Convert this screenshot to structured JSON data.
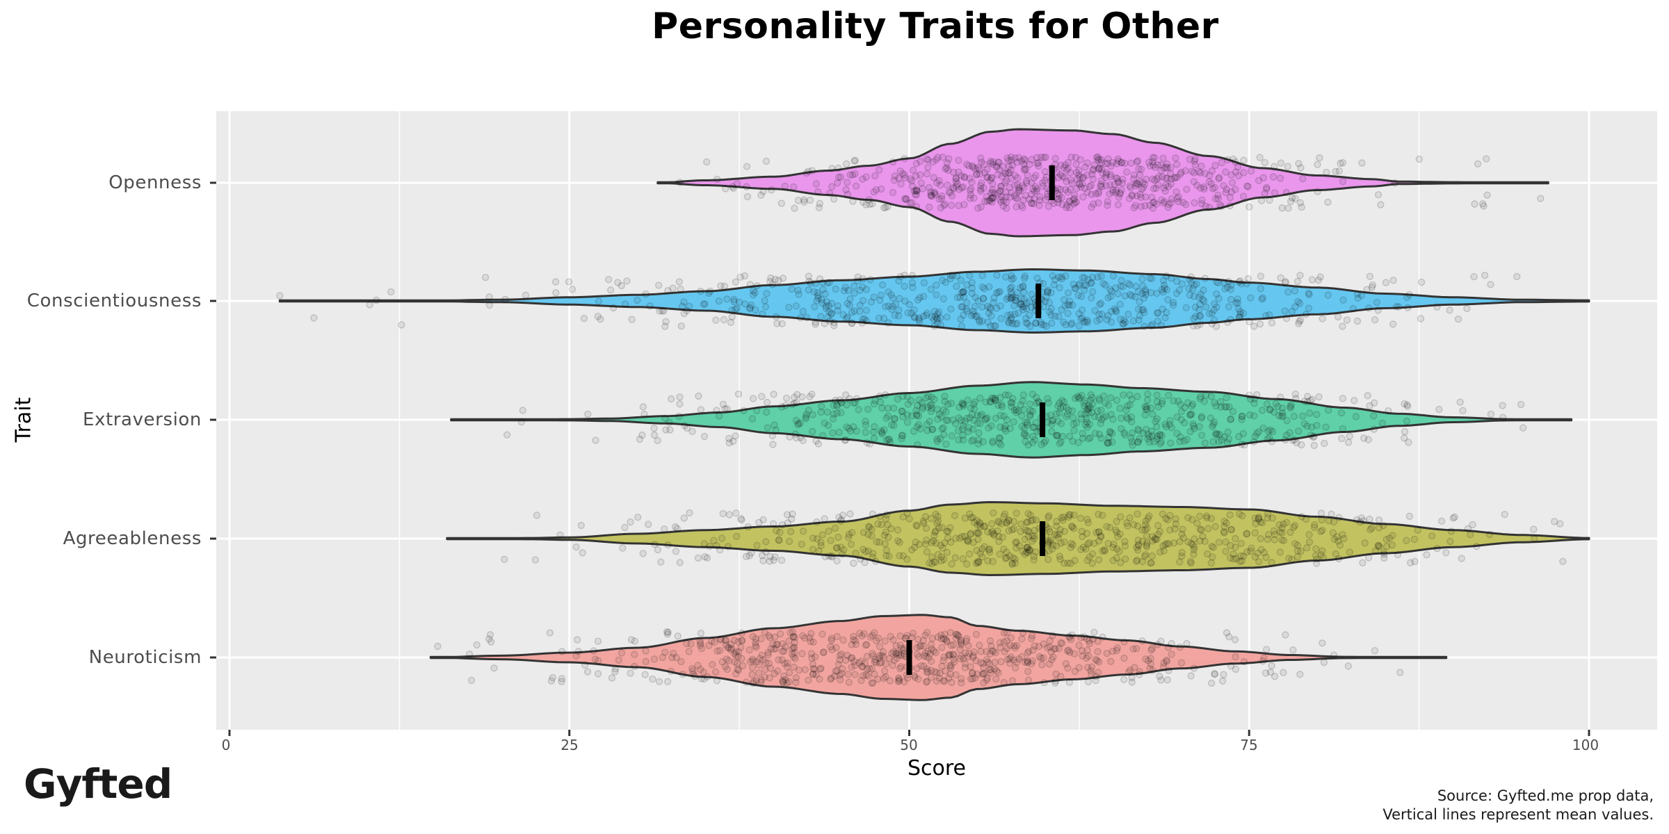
{
  "title": "Personality Traits for Other",
  "axes": {
    "xlabel": "Score",
    "ylabel": "Trait",
    "xticks": [
      "0",
      "25",
      "50",
      "75",
      "100"
    ],
    "yticks": [
      "Openness",
      "Conscientiousness",
      "Extraversion",
      "Agreeableness",
      "Neuroticism"
    ]
  },
  "caption": {
    "line1": "Source: Gyfted.me prop data,",
    "line2": "Vertical lines represent mean values."
  },
  "logo": "Gyfted",
  "colors": {
    "Openness": "#e991ec",
    "Conscientiousness": "#5ec5f0",
    "Extraversion": "#57cfa3",
    "Agreeableness": "#c0c05a",
    "Neuroticism": "#f2a19c",
    "panel_bg": "#ebebeb",
    "grid": "#ffffff",
    "outline": "#333333"
  },
  "chart_data": {
    "type": "violin",
    "title": "Personality Traits for Other",
    "xlabel": "Score",
    "ylabel": "Trait",
    "xlim": [
      -1,
      105
    ],
    "xticks": [
      0,
      25,
      50,
      75,
      100
    ],
    "categories": [
      "Openness",
      "Conscientiousness",
      "Extraversion",
      "Agreeableness",
      "Neuroticism"
    ],
    "grid": true,
    "legend": "none",
    "overlays": [
      "jittered points (alpha)",
      "mean vertical line"
    ],
    "series": [
      {
        "name": "Openness",
        "min": 31.5,
        "max": 97,
        "mean": 60.5,
        "mode": 58,
        "density_profile": [
          [
            31.5,
            0
          ],
          [
            35,
            2
          ],
          [
            40,
            5
          ],
          [
            44,
            10
          ],
          [
            47,
            14
          ],
          [
            50,
            20
          ],
          [
            53,
            32
          ],
          [
            56,
            42
          ],
          [
            58,
            44
          ],
          [
            62,
            43
          ],
          [
            65,
            40
          ],
          [
            68,
            33
          ],
          [
            72,
            22
          ],
          [
            76,
            12
          ],
          [
            80,
            6
          ],
          [
            84,
            3
          ],
          [
            86,
            1
          ],
          [
            90,
            0.5
          ],
          [
            97,
            0
          ]
        ]
      },
      {
        "name": "Conscientiousness",
        "min": 3.7,
        "max": 100,
        "mean": 59.5,
        "mode": 59,
        "density_profile": [
          [
            3.7,
            0
          ],
          [
            15,
            0.3
          ],
          [
            20,
            1
          ],
          [
            25,
            3
          ],
          [
            30,
            5
          ],
          [
            35,
            8
          ],
          [
            40,
            13
          ],
          [
            45,
            17
          ],
          [
            50,
            20
          ],
          [
            55,
            24
          ],
          [
            59,
            26
          ],
          [
            63,
            25
          ],
          [
            68,
            22
          ],
          [
            72,
            18
          ],
          [
            75,
            15
          ],
          [
            80,
            11
          ],
          [
            85,
            6
          ],
          [
            90,
            3
          ],
          [
            95,
            1
          ],
          [
            100,
            0.5
          ]
        ]
      },
      {
        "name": "Extraversion",
        "min": 16.3,
        "max": 98.7,
        "mean": 59.8,
        "mode": 59,
        "density_profile": [
          [
            16.3,
            0
          ],
          [
            25,
            0.5
          ],
          [
            28,
            1
          ],
          [
            32,
            3
          ],
          [
            36,
            6
          ],
          [
            40,
            11
          ],
          [
            45,
            16
          ],
          [
            50,
            22
          ],
          [
            55,
            28
          ],
          [
            59,
            31
          ],
          [
            63,
            29
          ],
          [
            67,
            26
          ],
          [
            72,
            23
          ],
          [
            77,
            17
          ],
          [
            82,
            10
          ],
          [
            86,
            5
          ],
          [
            90,
            2
          ],
          [
            94,
            0.5
          ],
          [
            98.7,
            0
          ]
        ]
      },
      {
        "name": "Agreeableness",
        "min": 16,
        "max": 100,
        "mean": 59.8,
        "mode": 56,
        "density_profile": [
          [
            16,
            0
          ],
          [
            22,
            0.5
          ],
          [
            25,
            1
          ],
          [
            30,
            4
          ],
          [
            35,
            7
          ],
          [
            40,
            10
          ],
          [
            45,
            14
          ],
          [
            50,
            23
          ],
          [
            53,
            28
          ],
          [
            56,
            30
          ],
          [
            60,
            29
          ],
          [
            65,
            27
          ],
          [
            70,
            26
          ],
          [
            75,
            24
          ],
          [
            80,
            18
          ],
          [
            85,
            12
          ],
          [
            90,
            7
          ],
          [
            95,
            3
          ],
          [
            100,
            0.5
          ]
        ]
      },
      {
        "name": "Neuroticism",
        "min": 14.8,
        "max": 89.5,
        "mean": 50,
        "mode": 51,
        "density_profile": [
          [
            14.8,
            0
          ],
          [
            20,
            1.5
          ],
          [
            25,
            4
          ],
          [
            30,
            8
          ],
          [
            35,
            16
          ],
          [
            40,
            24
          ],
          [
            45,
            30
          ],
          [
            48,
            34
          ],
          [
            51,
            35
          ],
          [
            53,
            33
          ],
          [
            55,
            26
          ],
          [
            58,
            22
          ],
          [
            62,
            18
          ],
          [
            66,
            14
          ],
          [
            70,
            9
          ],
          [
            74,
            5
          ],
          [
            78,
            2
          ],
          [
            82,
            0.5
          ],
          [
            89.5,
            0
          ]
        ]
      }
    ]
  }
}
